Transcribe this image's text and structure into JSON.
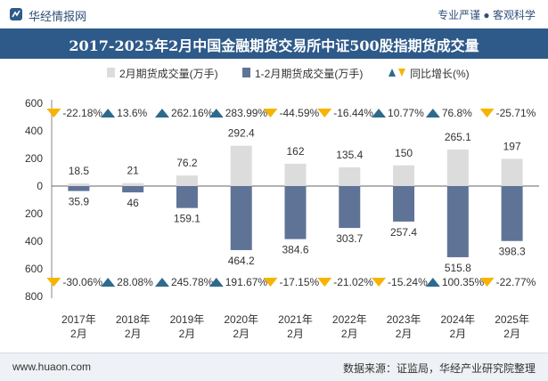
{
  "header": {
    "brand": "华经情报网",
    "tagline": "专业严谨 ● 客观科学",
    "title": "2017-2025年2月中国金融期货交易所中证500股指期货成交量"
  },
  "footer": {
    "site": "www.huaon.com",
    "source": "数据来源：证监局，华经产业研究院整理"
  },
  "colors": {
    "monthly_bar": "#dcdcdc",
    "cumulative_bar": "#5f7397",
    "growth_up": "#2e6a8e",
    "growth_down": "#f6b400",
    "title_band": "#2e5a8a"
  },
  "chart_data": {
    "type": "bar",
    "title": "2017-2025年2月中国金融期货交易所中证500股指期货成交量",
    "categories": [
      "2017年\n2月",
      "2018年\n2月",
      "2019年\n2月",
      "2020年\n2月",
      "2021年\n2月",
      "2022年\n2月",
      "2023年\n2月",
      "2024年\n2月",
      "2025年\n2月"
    ],
    "ylim": [
      -800,
      600
    ],
    "yticks": [
      600,
      400,
      200,
      0,
      -200,
      -400,
      -600,
      -800
    ],
    "ytick_labels": [
      "600",
      "400",
      "200",
      "0",
      "200",
      "400",
      "600",
      "800"
    ],
    "grid": false,
    "legend_position": "top",
    "series": [
      {
        "name": "2月期货成交量(万手)",
        "values": [
          18.5,
          21,
          76.2,
          292.4,
          162,
          135.4,
          150,
          265.1,
          197
        ],
        "direction": "up",
        "icon": "square"
      },
      {
        "name": "1-2月期货成交量(万手)",
        "values": [
          35.9,
          46,
          159.1,
          464.2,
          384.6,
          303.7,
          257.4,
          515.8,
          398.3
        ],
        "direction": "down",
        "icon": "square"
      },
      {
        "name": "同比增长(%)",
        "icon": "triangle"
      }
    ],
    "growth_top": [
      -22.18,
      13.6,
      262.16,
      283.99,
      -44.59,
      -16.44,
      10.77,
      76.8,
      -25.71
    ],
    "growth_bottom": [
      -30.06,
      28.08,
      245.78,
      191.67,
      -17.15,
      -21.02,
      -15.24,
      100.35,
      -22.77
    ]
  }
}
